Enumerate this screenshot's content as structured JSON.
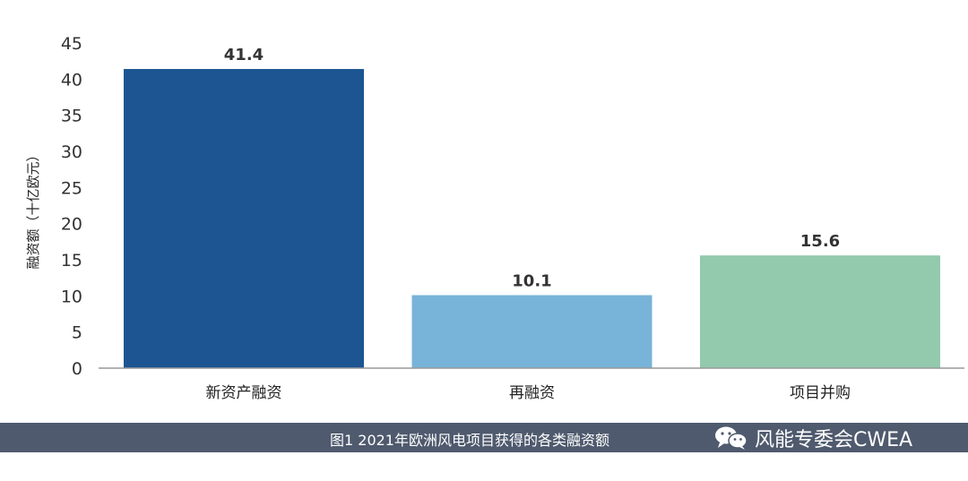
{
  "chart_data": {
    "type": "bar",
    "categories": [
      "新资产融资",
      "再融资",
      "项目并购"
    ],
    "values": [
      41.4,
      10.1,
      15.6
    ],
    "value_labels": [
      "41.4",
      "10.1",
      "15.6"
    ],
    "colors": [
      "#1c5592",
      "#78b3d9",
      "#93c9ad"
    ],
    "ylabel": "融资额（十亿欧元）",
    "ylim": [
      0,
      45
    ],
    "yticks": [
      0,
      5,
      10,
      15,
      20,
      25,
      30,
      35,
      40,
      45
    ],
    "grid": false
  },
  "caption": "图1 2021年欧洲风电项目获得的各类融资额",
  "brand": {
    "icon": "wechat-icon",
    "text": "风能专委会CWEA"
  }
}
